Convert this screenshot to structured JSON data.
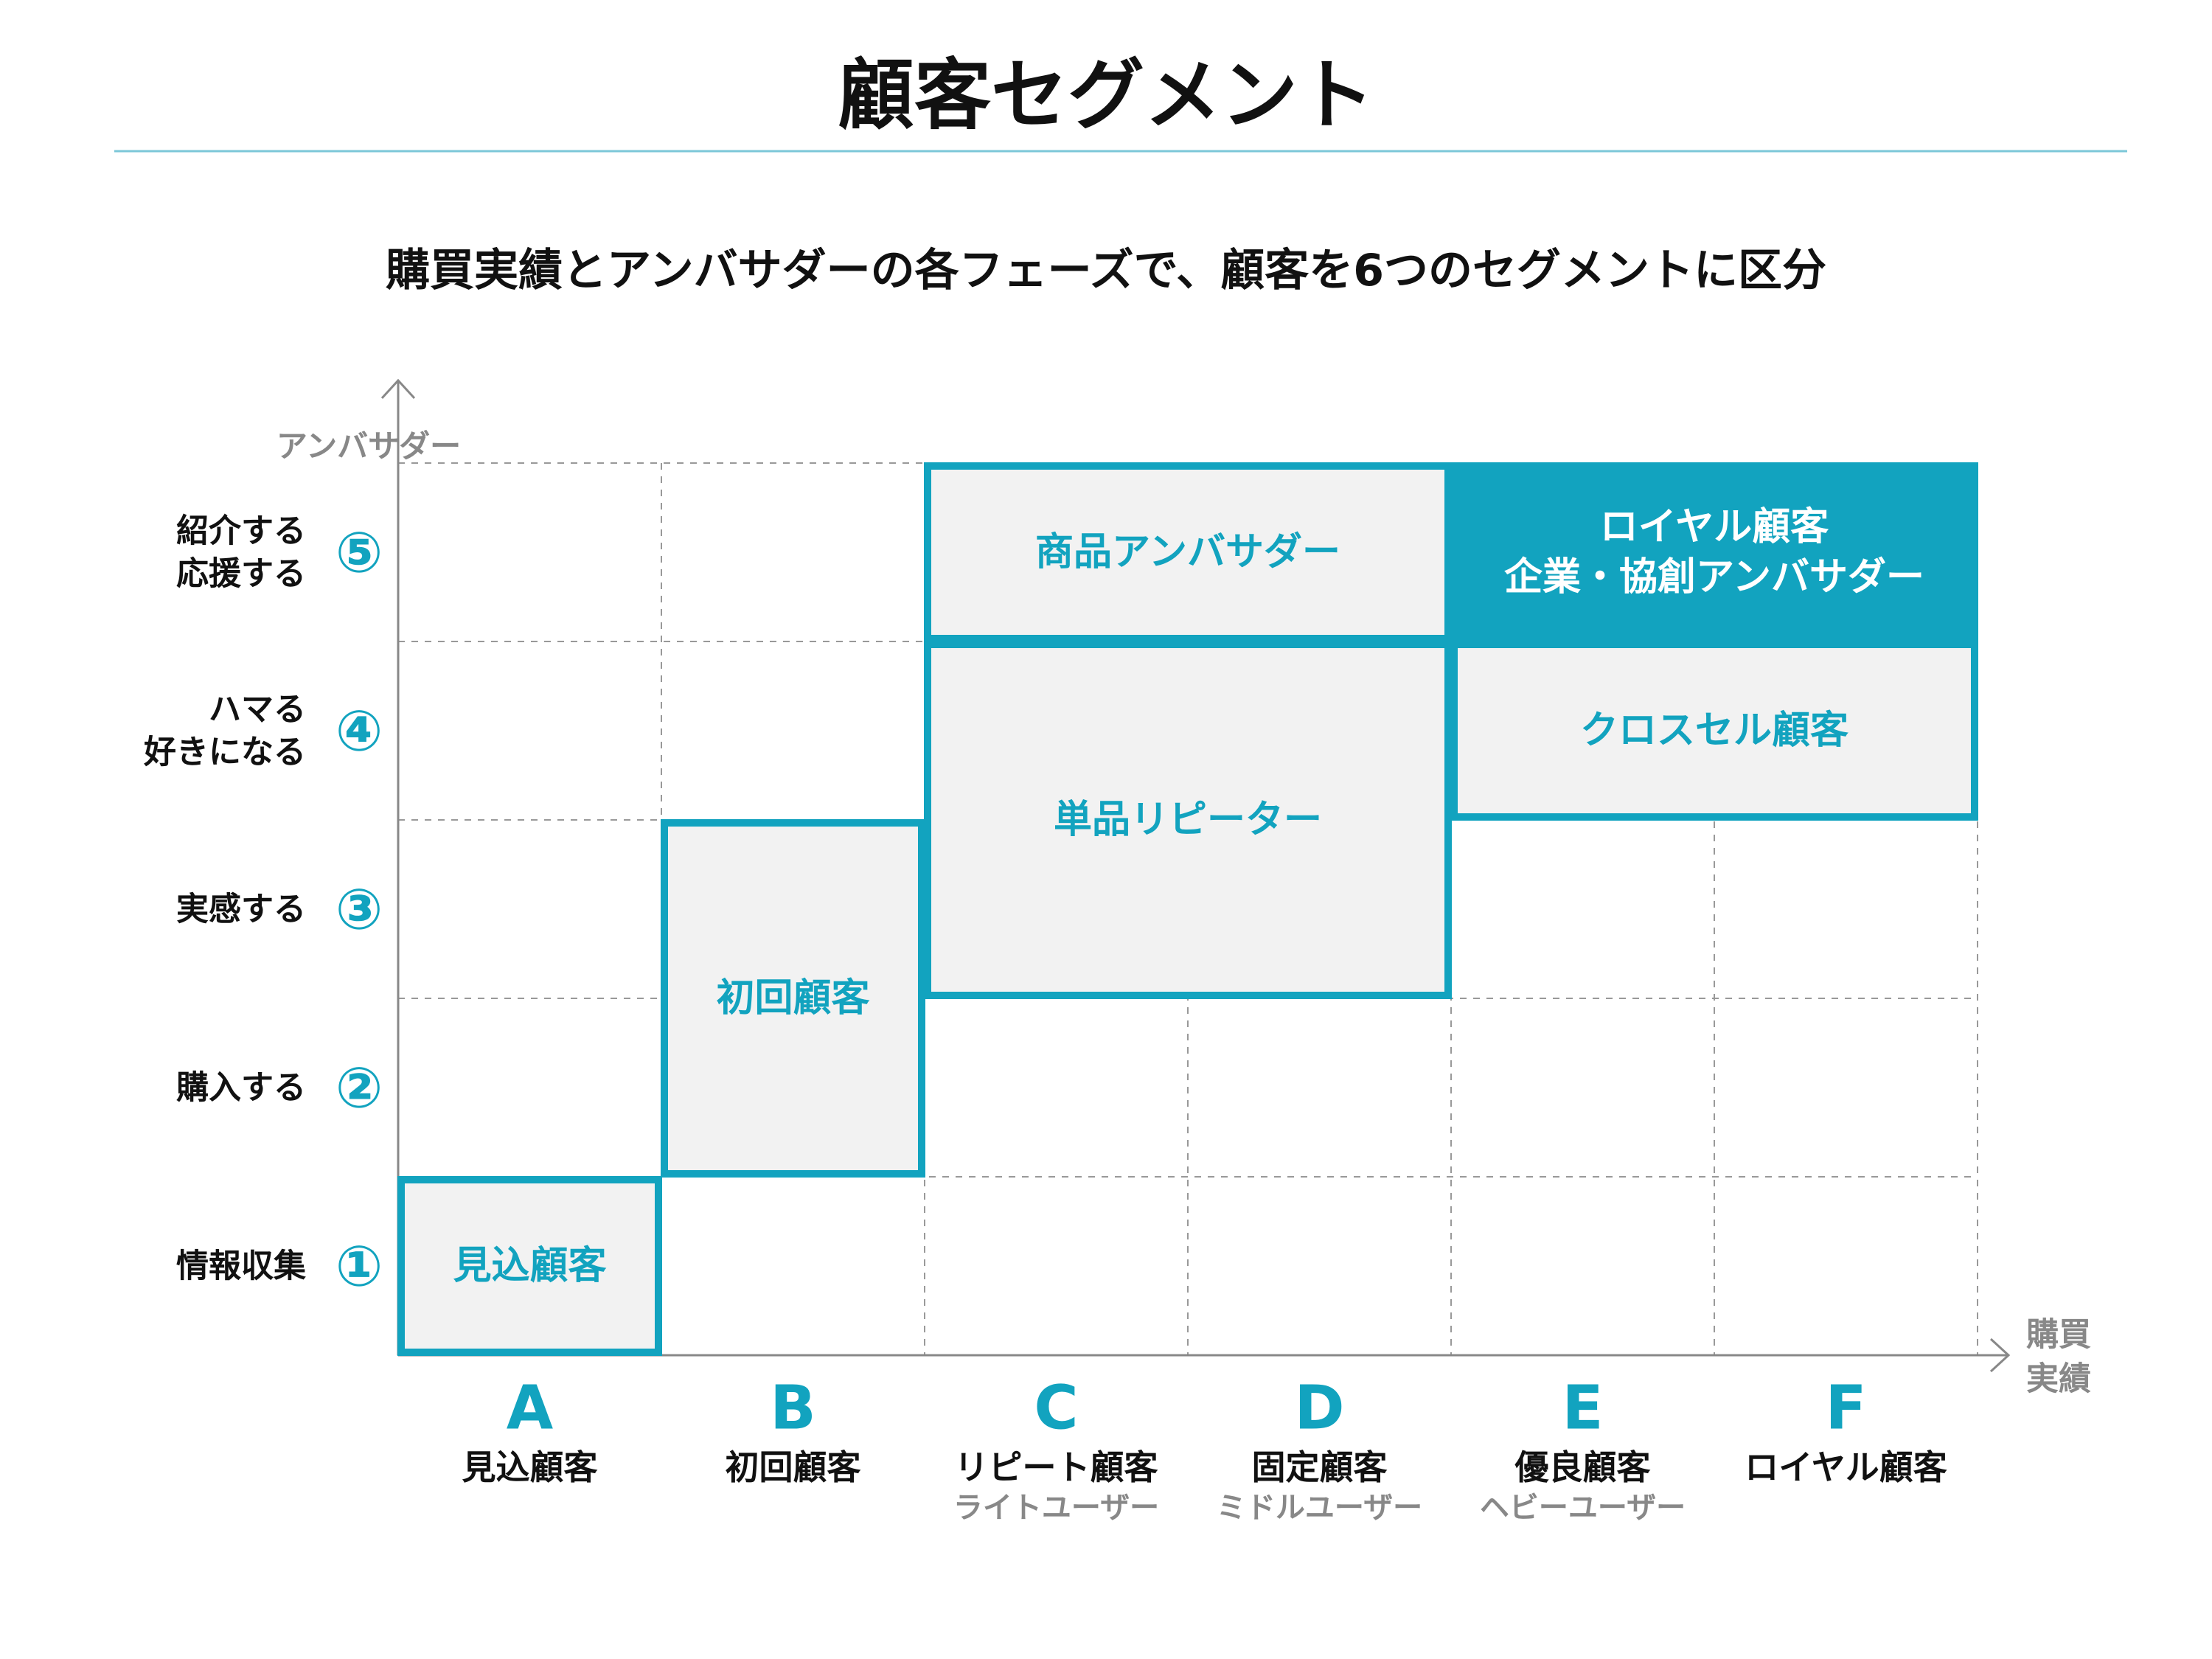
{
  "title": "顧客セグメント",
  "subtitle": "購買実績とアンバサダーの各フェーズで、顧客を6つのセグメントに区分",
  "colors": {
    "accent": "#12A3BF",
    "box_fill": "#F2F2F2",
    "text": "#111111",
    "muted": "#888888",
    "rule": "#7CC7D8",
    "grid": "#999999"
  },
  "y_axis": {
    "label": "アンバサダー",
    "levels": [
      {
        "num": "①",
        "lines": [
          "情報収集"
        ]
      },
      {
        "num": "②",
        "lines": [
          "購入する"
        ]
      },
      {
        "num": "③",
        "lines": [
          "実感する"
        ]
      },
      {
        "num": "④",
        "lines": [
          "ハマる",
          "好きになる"
        ]
      },
      {
        "num": "⑤",
        "lines": [
          "紹介する",
          "応援する"
        ]
      }
    ]
  },
  "x_axis": {
    "label_lines": [
      "購買",
      "実績"
    ],
    "categories": [
      {
        "letter": "A",
        "name": "見込顧客",
        "sub": ""
      },
      {
        "letter": "B",
        "name": "初回顧客",
        "sub": ""
      },
      {
        "letter": "C",
        "name": "リピート顧客",
        "sub": "ライトユーザー"
      },
      {
        "letter": "D",
        "name": "固定顧客",
        "sub": "ミドルユーザー"
      },
      {
        "letter": "E",
        "name": "優良顧客",
        "sub": "ヘビーユーザー"
      },
      {
        "letter": "F",
        "name": "ロイヤル顧客",
        "sub": ""
      }
    ]
  },
  "segments": [
    {
      "lines": [
        "見込顧客"
      ],
      "x_range": [
        "A",
        "A"
      ],
      "level_range": [
        1,
        1
      ],
      "style": "outline"
    },
    {
      "lines": [
        "初回顧客"
      ],
      "x_range": [
        "B",
        "B"
      ],
      "level_range": [
        2,
        3
      ],
      "style": "outline"
    },
    {
      "lines": [
        "単品リピーター"
      ],
      "x_range": [
        "C",
        "D"
      ],
      "level_range": [
        3,
        4
      ],
      "style": "outline"
    },
    {
      "lines": [
        "商品アンバサダー"
      ],
      "x_range": [
        "C",
        "D"
      ],
      "level_range": [
        5,
        5
      ],
      "style": "outline"
    },
    {
      "lines": [
        "クロスセル顧客"
      ],
      "x_range": [
        "E",
        "F"
      ],
      "level_range": [
        4,
        4
      ],
      "style": "outline"
    },
    {
      "lines": [
        "ロイヤル顧客",
        "企業・協創アンバサダー"
      ],
      "x_range": [
        "E",
        "F"
      ],
      "level_range": [
        5,
        5
      ],
      "style": "filled"
    }
  ]
}
